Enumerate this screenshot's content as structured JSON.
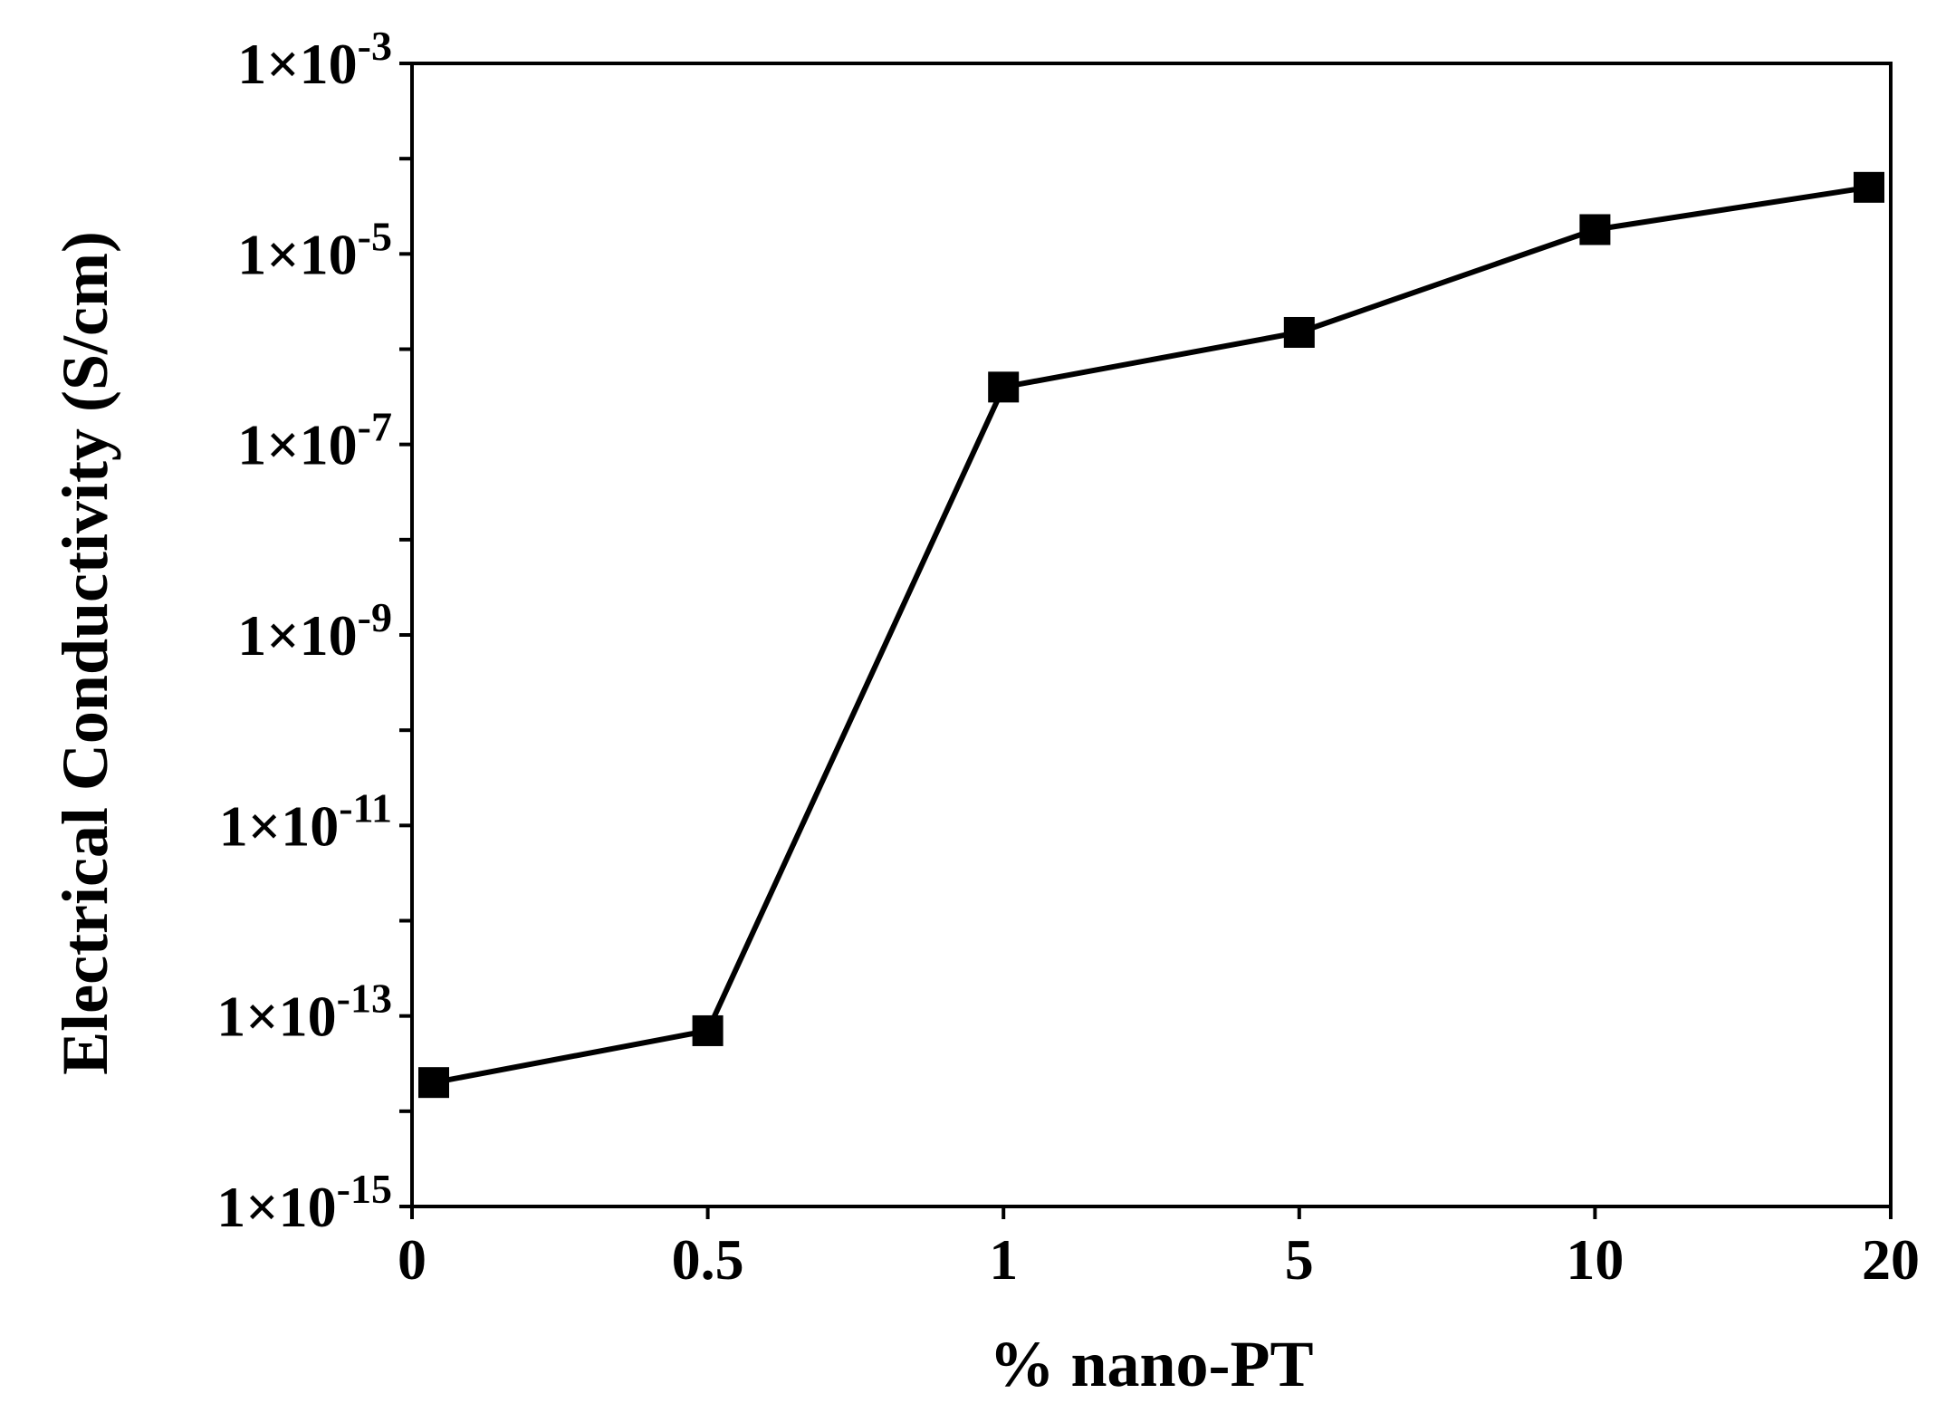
{
  "chart_data": {
    "type": "line",
    "xlabel": "% nano-PT",
    "ylabel": "Electrical Conductivity (S/cm)",
    "x_scale": "categorical",
    "y_scale": "log",
    "categories": [
      "0",
      "0.5",
      "1",
      "5",
      "10",
      "20"
    ],
    "yticks": [
      {
        "value": 1e-15,
        "base": "1×10",
        "exp": "-15"
      },
      {
        "value": 1e-13,
        "base": "1×10",
        "exp": "-13"
      },
      {
        "value": 1e-11,
        "base": "1×10",
        "exp": "-11"
      },
      {
        "value": 1e-09,
        "base": "1×10",
        "exp": "-9"
      },
      {
        "value": 1e-07,
        "base": "1×10",
        "exp": "-7"
      },
      {
        "value": 1e-05,
        "base": "1×10",
        "exp": "-5"
      },
      {
        "value": 0.001,
        "base": "1×10",
        "exp": "-3"
      }
    ],
    "ylim": [
      1e-15,
      0.001
    ],
    "grid": false,
    "series": [
      {
        "marker": "square",
        "color": "#000000",
        "points": [
          {
            "category": "0",
            "y": 2e-14
          },
          {
            "category": "0.5",
            "y": 7e-14
          },
          {
            "category": "1",
            "y": 4e-07
          },
          {
            "category": "5",
            "y": 1.5e-06
          },
          {
            "category": "10",
            "y": 1.8e-05
          },
          {
            "category": "20",
            "y": 5e-05
          }
        ]
      }
    ]
  }
}
